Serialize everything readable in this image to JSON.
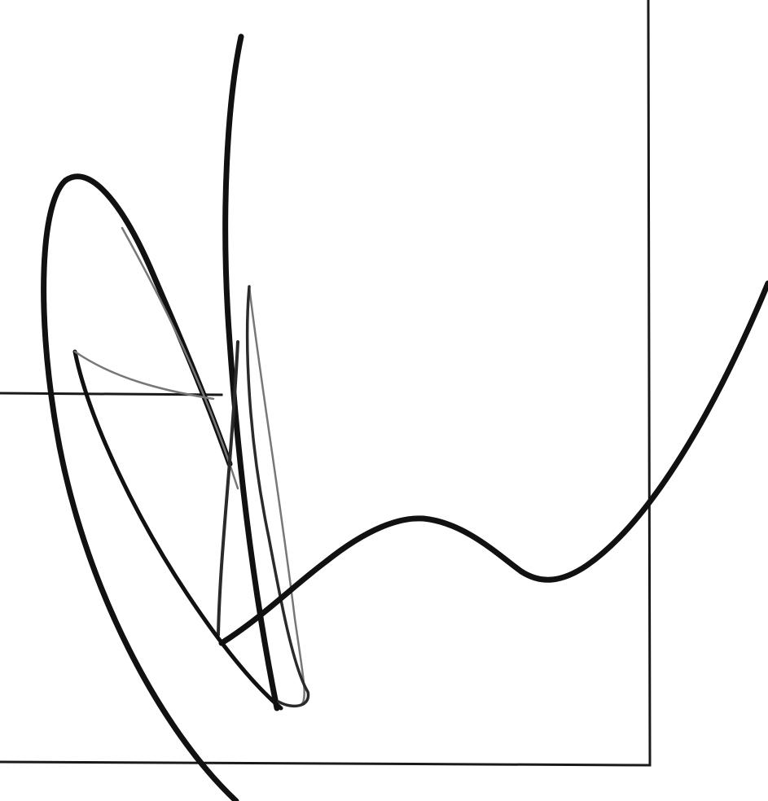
{
  "canvas": {
    "background": "#ffffff",
    "ink_color": "#111111",
    "frame_color": "#1a1a1a"
  },
  "strokes": [
    {
      "name": "loop-stroke"
    },
    {
      "name": "tall-vertical-stroke"
    },
    {
      "name": "inner-cusp-stroke"
    },
    {
      "name": "thin-needle-stroke"
    },
    {
      "name": "wave-tail-stroke"
    }
  ],
  "frame": {
    "name": "box-frame"
  }
}
